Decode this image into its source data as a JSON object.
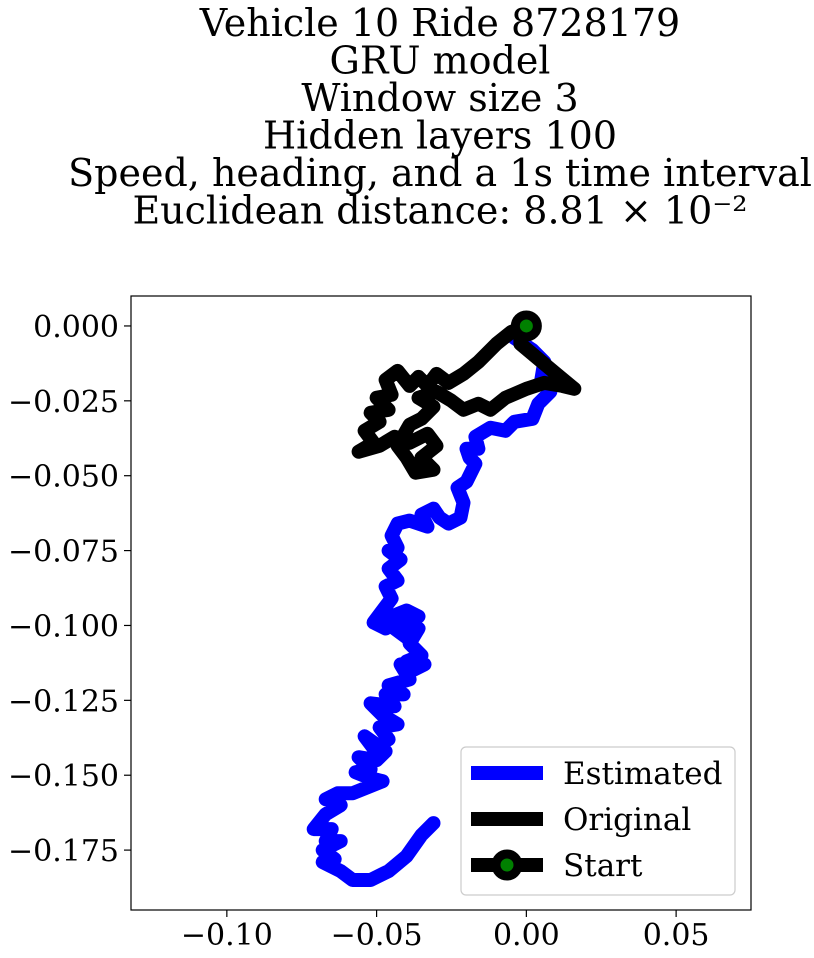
{
  "chart_data": {
    "type": "line",
    "title_lines": [
      "Vehicle 10 Ride 8728179",
      "GRU model",
      "Window size 3",
      "Hidden layers 100",
      "Speed, heading, and a 1s time interval",
      "Euclidean distance: 8.81 × 10⁻²"
    ],
    "xlabel": "",
    "ylabel": "",
    "xlim": [
      -0.132,
      0.075
    ],
    "ylim": [
      -0.195,
      0.01
    ],
    "x_ticks": [
      {
        "value": -0.1,
        "label": "−0.10"
      },
      {
        "value": -0.05,
        "label": "−0.05"
      },
      {
        "value": 0.0,
        "label": "0.00"
      },
      {
        "value": 0.05,
        "label": "0.05"
      }
    ],
    "y_ticks": [
      {
        "value": 0.0,
        "label": "0.000"
      },
      {
        "value": -0.025,
        "label": "−0.025"
      },
      {
        "value": -0.05,
        "label": "−0.050"
      },
      {
        "value": -0.075,
        "label": "−0.075"
      },
      {
        "value": -0.1,
        "label": "−0.100"
      },
      {
        "value": -0.125,
        "label": "−0.125"
      },
      {
        "value": -0.15,
        "label": "−0.150"
      },
      {
        "value": -0.175,
        "label": "−0.175"
      }
    ],
    "grid": false,
    "legend_position": "lower-right",
    "series": [
      {
        "name": "Estimated",
        "color": "#0000ff",
        "points": [
          [
            0.0,
            0.0
          ],
          [
            -0.004,
            -0.004
          ],
          [
            0.002,
            -0.008
          ],
          [
            0.006,
            -0.012
          ],
          [
            0.005,
            -0.018
          ],
          [
            0.008,
            -0.022
          ],
          [
            0.004,
            -0.026
          ],
          [
            0.002,
            -0.031
          ],
          [
            -0.004,
            -0.032
          ],
          [
            -0.007,
            -0.035
          ],
          [
            -0.012,
            -0.034
          ],
          [
            -0.017,
            -0.037
          ],
          [
            -0.016,
            -0.041
          ],
          [
            -0.02,
            -0.041
          ],
          [
            -0.019,
            -0.044
          ],
          [
            -0.017,
            -0.046
          ],
          [
            -0.02,
            -0.052
          ],
          [
            -0.023,
            -0.054
          ],
          [
            -0.021,
            -0.059
          ],
          [
            -0.022,
            -0.064
          ],
          [
            -0.026,
            -0.066
          ],
          [
            -0.029,
            -0.064
          ],
          [
            -0.031,
            -0.061
          ],
          [
            -0.035,
            -0.063
          ],
          [
            -0.033,
            -0.067
          ],
          [
            -0.039,
            -0.065
          ],
          [
            -0.043,
            -0.066
          ],
          [
            -0.045,
            -0.07
          ],
          [
            -0.043,
            -0.074
          ],
          [
            -0.046,
            -0.075
          ],
          [
            -0.042,
            -0.078
          ],
          [
            -0.046,
            -0.081
          ],
          [
            -0.043,
            -0.085
          ],
          [
            -0.047,
            -0.087
          ],
          [
            -0.045,
            -0.091
          ],
          [
            -0.048,
            -0.095
          ],
          [
            -0.051,
            -0.099
          ],
          [
            -0.047,
            -0.101
          ],
          [
            -0.045,
            -0.097
          ],
          [
            -0.04,
            -0.095
          ],
          [
            -0.036,
            -0.097
          ],
          [
            -0.044,
            -0.101
          ],
          [
            -0.04,
            -0.104
          ],
          [
            -0.036,
            -0.101
          ],
          [
            -0.039,
            -0.106
          ],
          [
            -0.035,
            -0.11
          ],
          [
            -0.04,
            -0.112
          ],
          [
            -0.034,
            -0.113
          ],
          [
            -0.038,
            -0.115
          ],
          [
            -0.042,
            -0.113
          ],
          [
            -0.039,
            -0.118
          ],
          [
            -0.046,
            -0.12
          ],
          [
            -0.041,
            -0.123
          ],
          [
            -0.047,
            -0.123
          ],
          [
            -0.044,
            -0.127
          ],
          [
            -0.052,
            -0.126
          ],
          [
            -0.048,
            -0.13
          ],
          [
            -0.043,
            -0.133
          ],
          [
            -0.049,
            -0.134
          ],
          [
            -0.046,
            -0.138
          ],
          [
            -0.051,
            -0.141
          ],
          [
            -0.054,
            -0.137
          ],
          [
            -0.047,
            -0.142
          ],
          [
            -0.05,
            -0.145
          ],
          [
            -0.056,
            -0.144
          ],
          [
            -0.052,
            -0.148
          ],
          [
            -0.057,
            -0.149
          ],
          [
            -0.052,
            -0.151
          ],
          [
            -0.048,
            -0.152
          ],
          [
            -0.053,
            -0.154
          ],
          [
            -0.058,
            -0.156
          ],
          [
            -0.063,
            -0.156
          ],
          [
            -0.067,
            -0.158
          ],
          [
            -0.062,
            -0.16
          ],
          [
            -0.067,
            -0.163
          ],
          [
            -0.071,
            -0.168
          ],
          [
            -0.065,
            -0.168
          ],
          [
            -0.067,
            -0.172
          ],
          [
            -0.062,
            -0.172
          ],
          [
            -0.068,
            -0.175
          ],
          [
            -0.064,
            -0.178
          ],
          [
            -0.068,
            -0.179
          ],
          [
            -0.062,
            -0.182
          ],
          [
            -0.058,
            -0.185
          ],
          [
            -0.052,
            -0.185
          ],
          [
            -0.046,
            -0.182
          ],
          [
            -0.04,
            -0.177
          ],
          [
            -0.035,
            -0.17
          ],
          [
            -0.031,
            -0.166
          ]
        ]
      },
      {
        "name": "Original",
        "color": "#000000",
        "points": [
          [
            0.0,
            0.0
          ],
          [
            -0.005,
            -0.002
          ],
          [
            -0.01,
            -0.006
          ],
          [
            -0.016,
            -0.012
          ],
          [
            -0.021,
            -0.016
          ],
          [
            -0.026,
            -0.019
          ],
          [
            -0.03,
            -0.016
          ],
          [
            -0.033,
            -0.02
          ],
          [
            -0.036,
            -0.017
          ],
          [
            -0.039,
            -0.02
          ],
          [
            -0.043,
            -0.015
          ],
          [
            -0.047,
            -0.018
          ],
          [
            -0.045,
            -0.023
          ],
          [
            -0.05,
            -0.024
          ],
          [
            -0.046,
            -0.028
          ],
          [
            -0.052,
            -0.029
          ],
          [
            -0.049,
            -0.032
          ],
          [
            -0.054,
            -0.035
          ],
          [
            -0.051,
            -0.039
          ],
          [
            -0.056,
            -0.042
          ],
          [
            -0.049,
            -0.04
          ],
          [
            -0.044,
            -0.037
          ],
          [
            -0.039,
            -0.039
          ],
          [
            -0.033,
            -0.036
          ],
          [
            -0.03,
            -0.04
          ],
          [
            -0.035,
            -0.044
          ],
          [
            -0.031,
            -0.048
          ],
          [
            -0.037,
            -0.049
          ],
          [
            -0.04,
            -0.044
          ],
          [
            -0.043,
            -0.04
          ],
          [
            -0.039,
            -0.033
          ],
          [
            -0.035,
            -0.031
          ],
          [
            -0.031,
            -0.027
          ],
          [
            -0.036,
            -0.024
          ],
          [
            -0.03,
            -0.022
          ],
          [
            -0.025,
            -0.025
          ],
          [
            -0.021,
            -0.028
          ],
          [
            -0.016,
            -0.026
          ],
          [
            -0.012,
            -0.028
          ],
          [
            -0.007,
            -0.024
          ],
          [
            0.0,
            -0.021
          ],
          [
            0.006,
            -0.019
          ],
          [
            0.012,
            -0.02
          ],
          [
            0.016,
            -0.021
          ],
          [
            0.01,
            -0.016
          ],
          [
            0.004,
            -0.011
          ],
          [
            -0.002,
            -0.006
          ],
          [
            -0.002,
            -0.002
          ],
          [
            0.0,
            0.0
          ]
        ]
      }
    ],
    "start_marker": {
      "name": "Start",
      "x": 0.0,
      "y": 0.0,
      "edge_color": "#000000",
      "face_color": "#008000"
    },
    "legend": [
      {
        "label": "Estimated",
        "color": "#0000ff"
      },
      {
        "label": "Original",
        "color": "#000000"
      },
      {
        "label": "Start",
        "color": "#000000",
        "marker_face": "#008000"
      }
    ]
  }
}
